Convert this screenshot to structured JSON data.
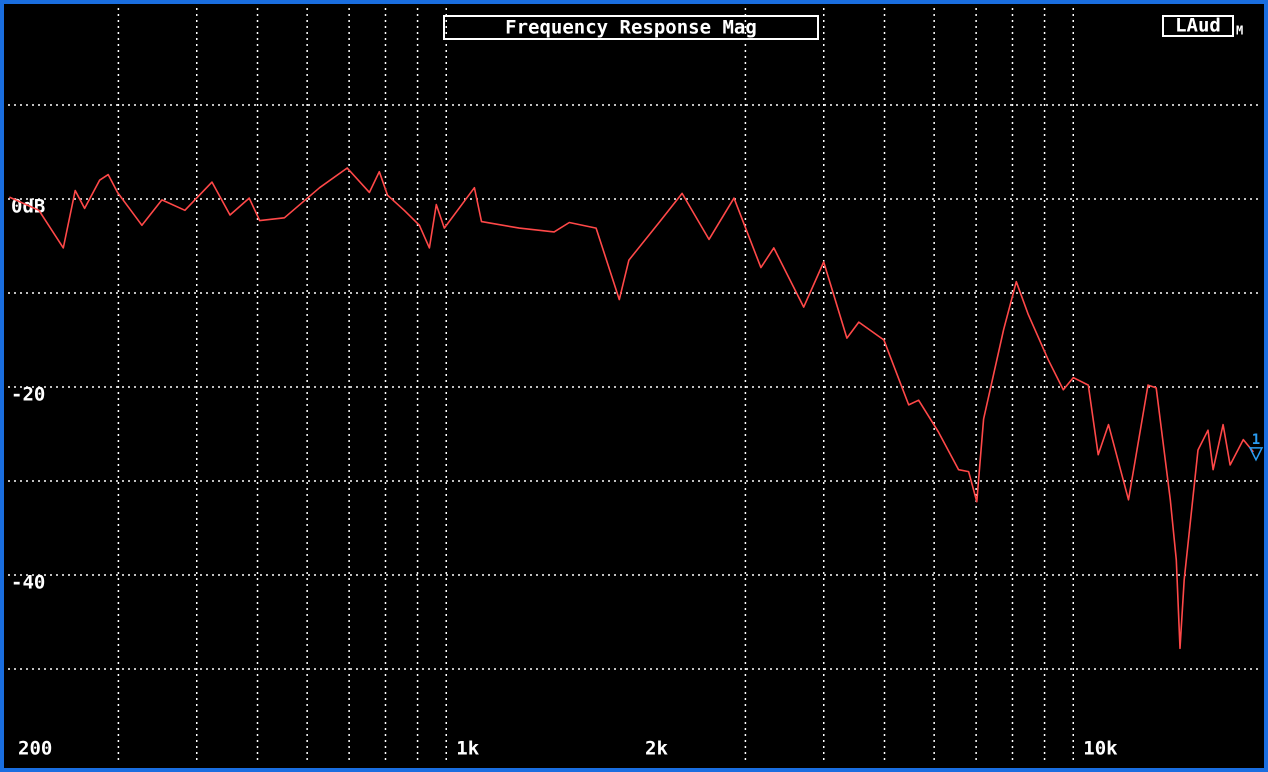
{
  "chart_data": {
    "type": "line",
    "title": "Frequency Response Mag",
    "channel_label": "LAud",
    "channel_mode": "M",
    "cursor_label": "1",
    "x_scale": "log",
    "grid": true,
    "xlim": [
      200,
      20000
    ],
    "ylim": [
      -60,
      20
    ],
    "xticks": [
      200,
      {
        "value": 1000,
        "label": "1k"
      },
      {
        "value": 2000,
        "label": "2k"
      },
      {
        "value": 10000,
        "label": "10k"
      }
    ],
    "xminor": [
      300,
      400,
      500,
      600,
      700,
      800,
      900,
      1000,
      3000,
      4000,
      5000,
      6000,
      7000,
      8000,
      9000,
      10000
    ],
    "yticks": [
      {
        "value": 0,
        "label": "0dB"
      },
      -20,
      -40
    ],
    "yminor": [
      10,
      0,
      -10,
      -20,
      -30,
      -40,
      -50
    ],
    "x": [
      201,
      224,
      245,
      256,
      265,
      280,
      289,
      299,
      327,
      352,
      383,
      423,
      452,
      485,
      504,
      552,
      628,
      695,
      754,
      782,
      806,
      857,
      906,
      940,
      964,
      993,
      1109,
      1138,
      1307,
      1486,
      1571,
      1734,
      1888,
      1956,
      2185,
      2378,
      2625,
      2877,
      3176,
      3330,
      3716,
      4000,
      4355,
      4550,
      4989,
      5465,
      5667,
      6097,
      6563,
      6808,
      7016,
      7194,
      7743,
      8114,
      8477,
      9121,
      9640,
      10000,
      10570,
      10960,
      11380,
      12250,
      13160,
      13560,
      14280,
      14600,
      14800,
      15030,
      15810,
      16400,
      16710,
      17340,
      17790,
      18670,
      19370
    ],
    "series": [
      {
        "name": "LAud",
        "color": "#ff4848",
        "values": [
          0.2,
          -1.2,
          -5.2,
          0.9,
          -1.0,
          2.0,
          2.6,
          0.7,
          -2.8,
          -0.1,
          -1.2,
          1.8,
          -1.7,
          0.1,
          -2.3,
          -2.0,
          1.2,
          3.3,
          0.7,
          2.9,
          0.4,
          -1.2,
          -2.8,
          -5.2,
          -0.6,
          -3.1,
          1.2,
          -2.4,
          -3.1,
          -3.5,
          -2.5,
          -3.1,
          -10.7,
          -6.5,
          -2.5,
          0.6,
          -4.3,
          0.1,
          -7.3,
          -5.2,
          -11.5,
          -6.7,
          -14.8,
          -13.1,
          -15.0,
          -21.9,
          -21.4,
          -24.8,
          -28.8,
          -29.0,
          -32.2,
          -23.4,
          -13.9,
          -8.8,
          -12.3,
          -17.1,
          -20.3,
          -19.0,
          -19.8,
          -27.2,
          -24.0,
          -32.0,
          -19.8,
          -20.1,
          -32.0,
          -38.4,
          -47.8,
          -40.5,
          -26.7,
          -24.6,
          -28.8,
          -24.0,
          -28.3,
          -25.6,
          -26.9
        ]
      }
    ]
  }
}
